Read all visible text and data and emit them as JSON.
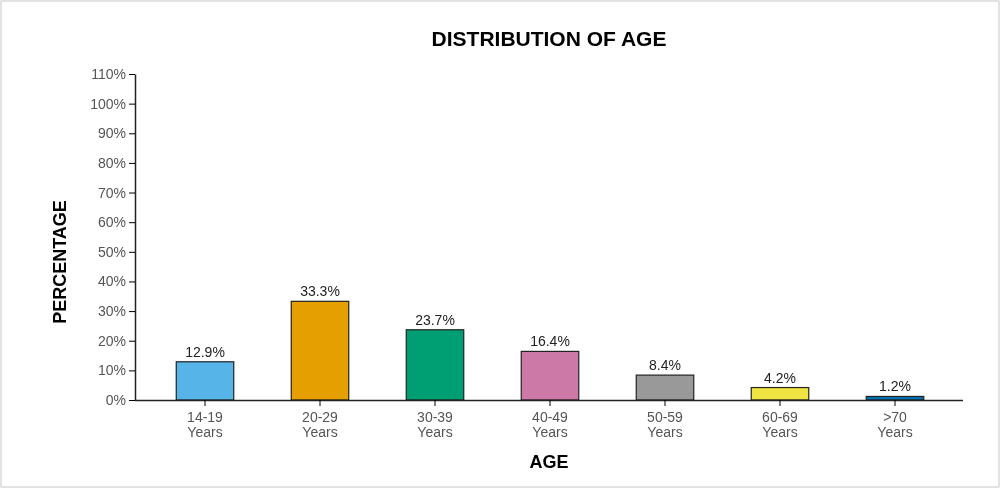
{
  "chart_data": {
    "type": "bar",
    "title": "DISTRIBUTION OF AGE",
    "xlabel": "AGE",
    "ylabel": "PERCENTAGE",
    "categories": [
      "14-19 Years",
      "20-29 Years",
      "30-39 Years",
      "40-49 Years",
      "50-59 Years",
      "60-69 Years",
      ">70 Years"
    ],
    "values": [
      12.9,
      33.3,
      23.7,
      16.4,
      8.4,
      4.2,
      1.2
    ],
    "colors": [
      "#56b4e9",
      "#e69f00",
      "#009e73",
      "#cc79a7",
      "#999999",
      "#f0e442",
      "#0072b2"
    ],
    "value_labels": [
      "12.9%",
      "33.3%",
      "23.7%",
      "16.4%",
      "8.4%",
      "4.2%",
      "1.2%"
    ],
    "ylim": [
      0,
      110
    ],
    "yticks": [
      {
        "value": 0,
        "label": "0%"
      },
      {
        "value": 10,
        "label": "10%"
      },
      {
        "value": 20,
        "label": "20%"
      },
      {
        "value": 30,
        "label": "30%"
      },
      {
        "value": 40,
        "label": "40%"
      },
      {
        "value": 50,
        "label": "50%"
      },
      {
        "value": 60,
        "label": "60%"
      },
      {
        "value": 70,
        "label": "70%"
      },
      {
        "value": 80,
        "label": "80%"
      },
      {
        "value": 90,
        "label": "90%"
      },
      {
        "value": 100,
        "label": "100%"
      },
      {
        "value": 110,
        "label": "110%"
      }
    ],
    "grid": false
  }
}
